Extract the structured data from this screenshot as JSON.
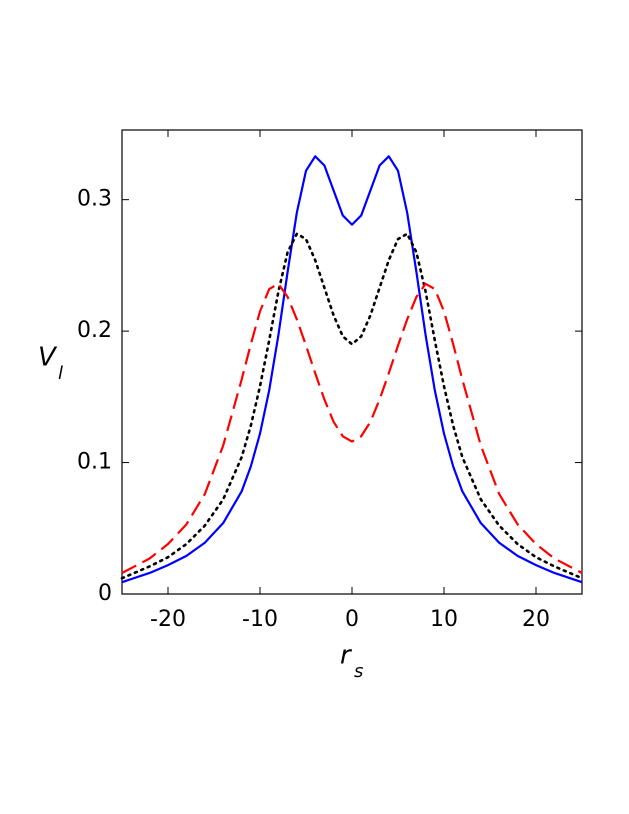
{
  "chart_data": {
    "type": "line",
    "x_label": "r",
    "x_label_sub": "s",
    "y_label": "V",
    "y_label_sub": "l",
    "x": [
      -25,
      -22,
      -20,
      -18,
      -16,
      -14,
      -12,
      -11,
      -10,
      -9,
      -8,
      -7,
      -6,
      -5,
      -4,
      -3,
      -2,
      -1,
      0,
      1,
      2,
      3,
      4,
      5,
      6,
      7,
      8,
      9,
      10,
      11,
      12,
      14,
      16,
      18,
      20,
      22,
      25
    ],
    "series": [
      {
        "color": "#0000ff",
        "style": "solid",
        "values": [
          0.009,
          0.016,
          0.022,
          0.029,
          0.039,
          0.054,
          0.078,
          0.097,
          0.122,
          0.155,
          0.197,
          0.245,
          0.29,
          0.322,
          0.333,
          0.326,
          0.307,
          0.288,
          0.281,
          0.288,
          0.307,
          0.326,
          0.333,
          0.322,
          0.29,
          0.245,
          0.197,
          0.155,
          0.122,
          0.097,
          0.078,
          0.054,
          0.039,
          0.029,
          0.022,
          0.016,
          0.009
        ]
      },
      {
        "color": "#000000",
        "style": "dotted",
        "values": [
          0.012,
          0.021,
          0.028,
          0.038,
          0.052,
          0.072,
          0.104,
          0.128,
          0.158,
          0.193,
          0.23,
          0.26,
          0.274,
          0.27,
          0.254,
          0.233,
          0.212,
          0.196,
          0.19,
          0.196,
          0.212,
          0.233,
          0.254,
          0.27,
          0.274,
          0.26,
          0.23,
          0.193,
          0.158,
          0.128,
          0.104,
          0.072,
          0.052,
          0.038,
          0.028,
          0.021,
          0.012
        ]
      },
      {
        "color": "#ff0000",
        "style": "dashed",
        "values": [
          0.016,
          0.027,
          0.038,
          0.053,
          0.076,
          0.113,
          0.163,
          0.19,
          0.215,
          0.232,
          0.236,
          0.226,
          0.209,
          0.189,
          0.168,
          0.148,
          0.131,
          0.12,
          0.116,
          0.12,
          0.131,
          0.148,
          0.168,
          0.189,
          0.209,
          0.226,
          0.236,
          0.232,
          0.215,
          0.19,
          0.163,
          0.113,
          0.076,
          0.053,
          0.038,
          0.027,
          0.016
        ]
      }
    ],
    "xlim": [
      -25,
      25
    ],
    "ylim": [
      0,
      0.353
    ],
    "xticks": [
      -20,
      -10,
      0,
      10,
      20
    ],
    "yticks": [
      0,
      0.1,
      0.2,
      0.3
    ]
  }
}
